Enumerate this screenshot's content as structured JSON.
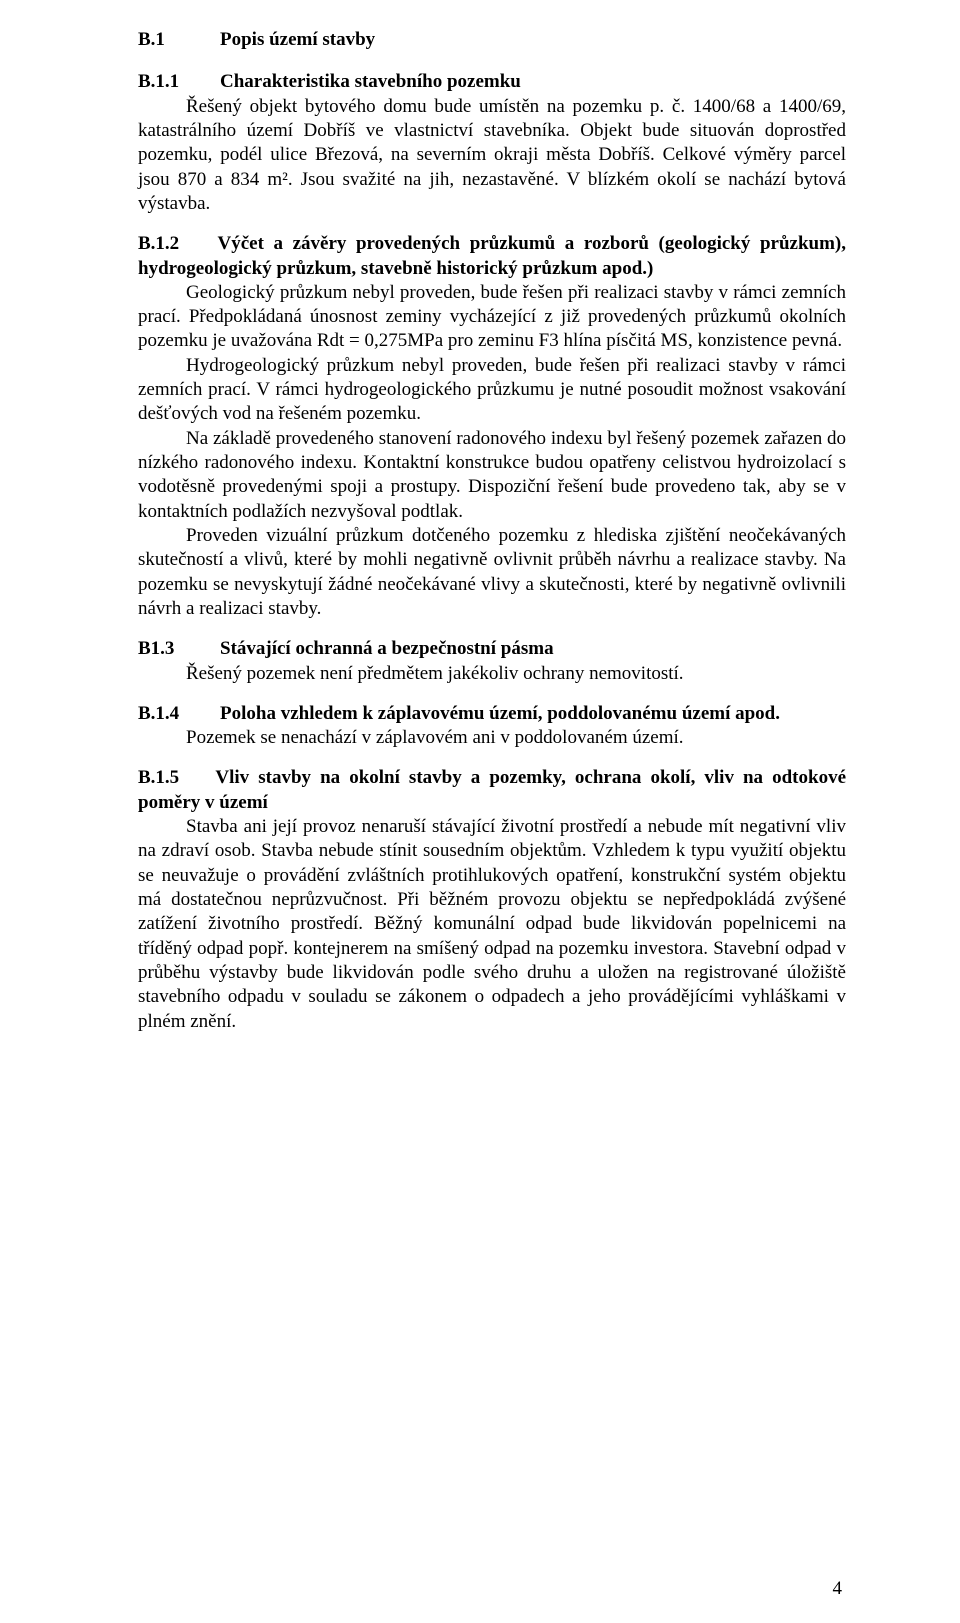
{
  "page_number": "4",
  "b1": {
    "num": "B.1",
    "title": "Popis území stavby"
  },
  "b11": {
    "num": "B.1.1",
    "title": "Charakteristika stavebního pozemku",
    "para": "Řešený objekt bytového domu bude umístěn na pozemku p. č. 1400/68 a 1400/69, katastrálního území Dobříš ve vlastnictví stavebníka. Objekt bude situován doprostřed pozemku, podél ulice Březová, na severním okraji města Dobříš. Celkové výměry parcel jsou 870 a 834 m². Jsou svažité na jih, nezastavěné. V blízkém okolí se nachází bytová výstavba."
  },
  "b12": {
    "num": "B.1.2",
    "title": "Výčet a závěry provedených průzkumů a rozborů (geologický průzkum), hydrogeologický průzkum, stavebně historický průzkum apod.)",
    "p1": "Geologický průzkum nebyl proveden, bude řešen při realizaci stavby v rámci zemních prací. Předpokládaná únosnost zeminy vycházející z již provedených průzkumů okolních pozemku je uvažována Rdt = 0,275MPa pro zeminu F3 hlína písčitá MS, konzistence pevná.",
    "p2": "Hydrogeologický průzkum nebyl proveden, bude řešen při realizaci stavby v rámci zemních prací. V rámci hydrogeologického průzkumu je nutné posoudit možnost vsakování dešťových vod na řešeném pozemku.",
    "p3": "Na základě provedeného stanovení radonového indexu byl řešený pozemek zařazen do nízkého radonového indexu. Kontaktní konstrukce budou opatřeny celistvou hydroizolací s vodotěsně provedenými spoji a prostupy. Dispoziční řešení bude provedeno tak, aby se v kontaktních podlažích nezvyšoval podtlak.",
    "p4": "Proveden vizuální průzkum dotčeného pozemku z hlediska zjištění neočekávaných skutečností a vlivů, které by mohli negativně ovlivnit průběh návrhu a realizace stavby. Na pozemku se nevyskytují žádné neočekávané vlivy a skutečnosti, které by negativně ovlivnili návrh a realizaci stavby."
  },
  "b13": {
    "num": "B1.3",
    "title": "Stávající ochranná a bezpečnostní pásma",
    "para": "Řešený pozemek není předmětem jakékoliv ochrany nemovitostí."
  },
  "b14": {
    "num": "B.1.4",
    "title": "Poloha vzhledem k záplavovému území, poddolovanému území apod.",
    "para": "Pozemek se nenachází v záplavovém ani v poddolovaném území."
  },
  "b15": {
    "num": "B.1.5",
    "title": "Vliv stavby na okolní stavby a pozemky, ochrana okolí, vliv na odtokové poměry v území",
    "para": "Stavba ani její provoz nenaruší stávající životní prostředí a nebude mít negativní vliv na zdraví osob. Stavba nebude stínit sousedním objektům. Vzhledem k typu využití objektu se neuvažuje o provádění zvláštních protihlukových opatření, konstrukční systém objektu má dostatečnou neprůzvučnost. Při běžném provozu objektu se nepředpokládá zvýšené zatížení životního prostředí. Běžný komunální odpad bude likvidován popelnicemi na tříděný odpad popř. kontejnerem na smíšený odpad na pozemku investora. Stavební odpad v průběhu výstavby bude likvidován podle svého druhu a uložen na registrované úložiště stavebního odpadu v souladu se zákonem o odpadech a jeho provádějícími vyhláškami v plném znění."
  }
}
